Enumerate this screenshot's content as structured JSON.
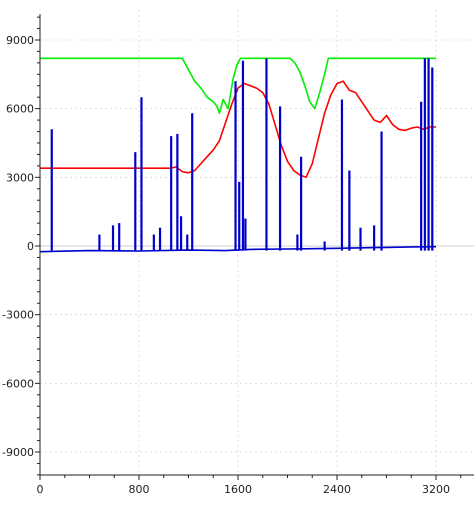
{
  "chart_data": {
    "type": "line",
    "title": "",
    "xlabel": "",
    "ylabel": "",
    "xlim": [
      0,
      3500
    ],
    "ylim": [
      -10000,
      10000
    ],
    "xticks": [
      0,
      800,
      1600,
      2400,
      3200
    ],
    "yticks": [
      -9000,
      -6000,
      -3000,
      0,
      3000,
      6000,
      9000
    ],
    "grid": true,
    "colors": {
      "green": "#00ee00",
      "red": "#ff0000",
      "blue": "#0000cc"
    },
    "series": [
      {
        "color": "green",
        "x": [
          0,
          1150,
          1200,
          1250,
          1300,
          1350,
          1400,
          1430,
          1450,
          1480,
          1520,
          1560,
          1590,
          1620,
          1650,
          2020,
          2060,
          2100,
          2140,
          2180,
          2220,
          2260,
          2300,
          2330,
          3200
        ],
        "y": [
          8200,
          8200,
          7700,
          7200,
          6900,
          6500,
          6300,
          6100,
          5800,
          6400,
          6000,
          7300,
          7900,
          8200,
          8200,
          8200,
          8000,
          7600,
          7000,
          6300,
          6000,
          6700,
          7500,
          8200,
          8200
        ]
      },
      {
        "color": "red",
        "x": [
          0,
          1050,
          1100,
          1150,
          1200,
          1250,
          1300,
          1350,
          1400,
          1450,
          1500,
          1550,
          1600,
          1650,
          1700,
          1750,
          1800,
          1850,
          1900,
          1950,
          2000,
          2050,
          2100,
          2150,
          2200,
          2250,
          2300,
          2350,
          2400,
          2450,
          2500,
          2550,
          2600,
          2650,
          2700,
          2750,
          2800,
          2850,
          2900,
          2950,
          3000,
          3050,
          3100,
          3150,
          3200
        ],
        "y": [
          3400,
          3400,
          3450,
          3250,
          3200,
          3300,
          3600,
          3900,
          4200,
          4600,
          5400,
          6200,
          6900,
          7100,
          7000,
          6900,
          6700,
          6200,
          5300,
          4400,
          3700,
          3300,
          3100,
          3000,
          3600,
          4700,
          5800,
          6600,
          7100,
          7200,
          6800,
          6700,
          6300,
          5900,
          5500,
          5400,
          5700,
          5300,
          5100,
          5050,
          5150,
          5200,
          5100,
          5200,
          5200
        ]
      },
      {
        "color": "blue",
        "x": [
          0,
          400,
          800,
          1200,
          1500,
          1700,
          2000,
          2200,
          2400,
          2600,
          2800,
          3000,
          3200
        ],
        "y": [
          -250,
          -200,
          -220,
          -180,
          -200,
          -150,
          -130,
          -120,
          -100,
          -80,
          -60,
          -40,
          -30
        ],
        "spikes": [
          {
            "x": 95,
            "y": 5100
          },
          {
            "x": 480,
            "y": 500
          },
          {
            "x": 590,
            "y": 900
          },
          {
            "x": 640,
            "y": 1000
          },
          {
            "x": 770,
            "y": 4100
          },
          {
            "x": 820,
            "y": 6500
          },
          {
            "x": 920,
            "y": 500
          },
          {
            "x": 970,
            "y": 800
          },
          {
            "x": 1060,
            "y": 4800
          },
          {
            "x": 1110,
            "y": 4900
          },
          {
            "x": 1140,
            "y": 1300
          },
          {
            "x": 1190,
            "y": 500
          },
          {
            "x": 1230,
            "y": 5800
          },
          {
            "x": 1580,
            "y": 7200
          },
          {
            "x": 1610,
            "y": 2800
          },
          {
            "x": 1640,
            "y": 8100
          },
          {
            "x": 1660,
            "y": 1200
          },
          {
            "x": 1830,
            "y": 8200
          },
          {
            "x": 1940,
            "y": 6100
          },
          {
            "x": 2080,
            "y": 500
          },
          {
            "x": 2110,
            "y": 3900
          },
          {
            "x": 2300,
            "y": 200
          },
          {
            "x": 2440,
            "y": 6400
          },
          {
            "x": 2500,
            "y": 3300
          },
          {
            "x": 2590,
            "y": 800
          },
          {
            "x": 2700,
            "y": 900
          },
          {
            "x": 2760,
            "y": 5000
          },
          {
            "x": 3080,
            "y": 6300
          },
          {
            "x": 3110,
            "y": 8200
          },
          {
            "x": 3140,
            "y": 8200
          },
          {
            "x": 3170,
            "y": 7800
          }
        ]
      }
    ]
  }
}
